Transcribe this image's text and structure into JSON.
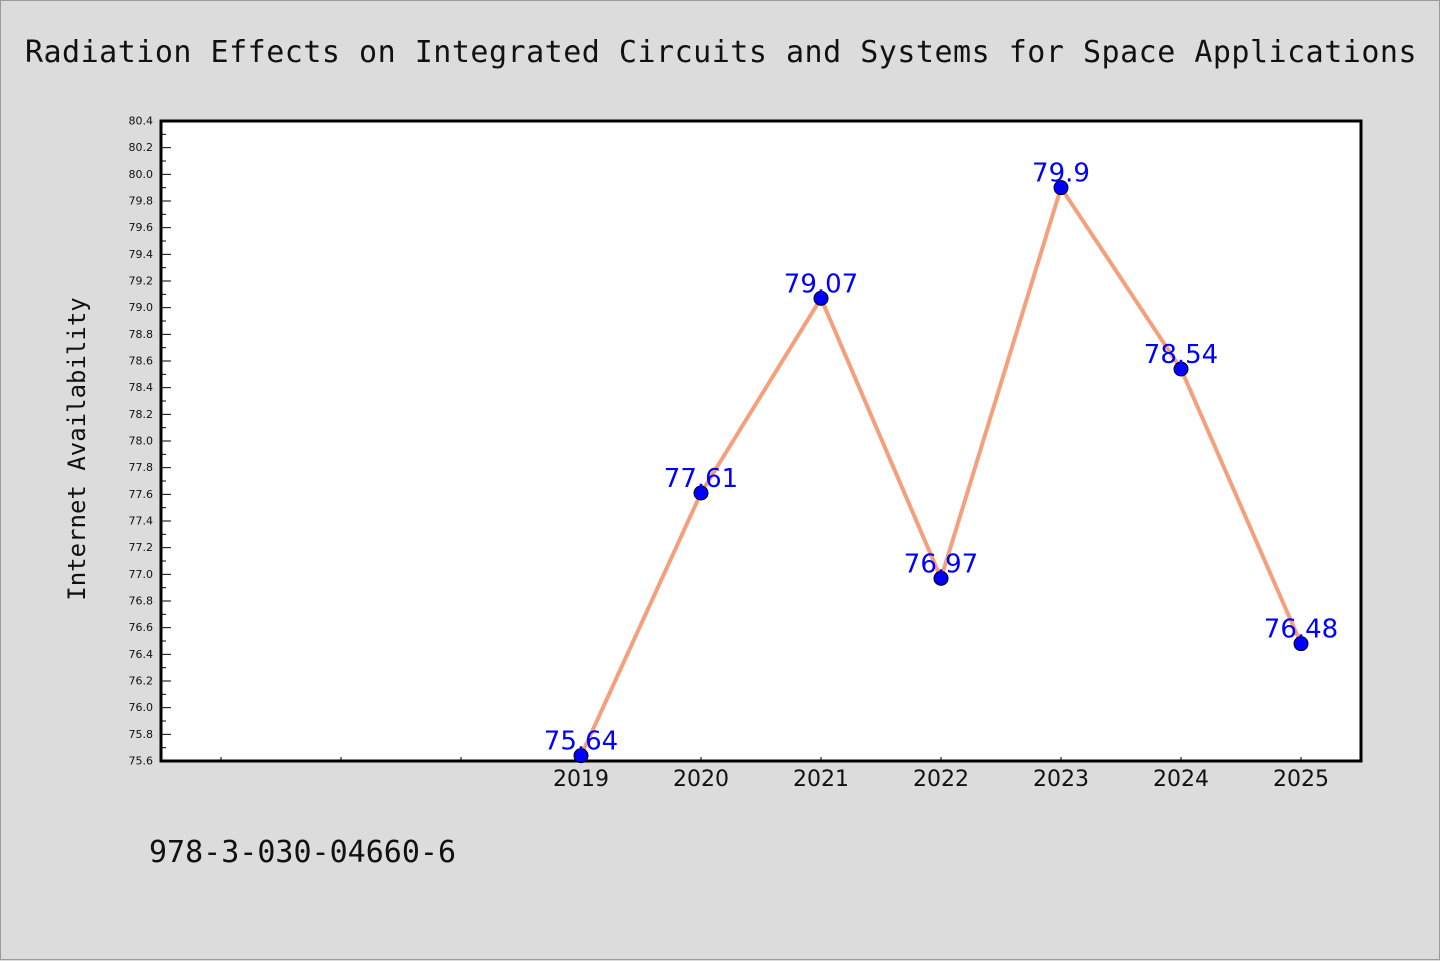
{
  "title": "Radiation Effects on Integrated Circuits and Systems for Space Applications",
  "footer_text": "978-3-030-04660-6",
  "colors": {
    "background": "#dcdcdc",
    "plot_background": "#ffffff",
    "line": "#f4a07c",
    "marker": "#0000ff",
    "label": "#0000ff"
  },
  "chart_data": {
    "type": "line",
    "title": "Radiation Effects on Integrated Circuits and Systems for Space Applications",
    "xlabel": "",
    "ylabel": "Internet Availability",
    "x": [
      "2019",
      "2020",
      "2021",
      "2022",
      "2023",
      "2024",
      "2025"
    ],
    "series": [
      {
        "values": [
          75.64,
          77.61,
          79.07,
          76.97,
          79.9,
          78.54,
          76.48
        ]
      }
    ],
    "data_labels": [
      "75.64",
      "77.61",
      "79.07",
      "76.97",
      "79.9",
      "78.54",
      "76.48"
    ],
    "ylim": [
      75.6,
      80.4
    ],
    "ytick_labels": [
      "75.6",
      "75.8",
      "76.0",
      "76.2",
      "76.4",
      "76.6",
      "76.8",
      "77.0",
      "77.2",
      "77.4",
      "77.6",
      "77.8",
      "78.0",
      "78.2",
      "78.4",
      "78.6",
      "78.8",
      "79.0",
      "79.2",
      "79.4",
      "79.6",
      "79.8",
      "80.0",
      "80.2",
      "80.4"
    ],
    "grid": false,
    "legend": "none"
  }
}
